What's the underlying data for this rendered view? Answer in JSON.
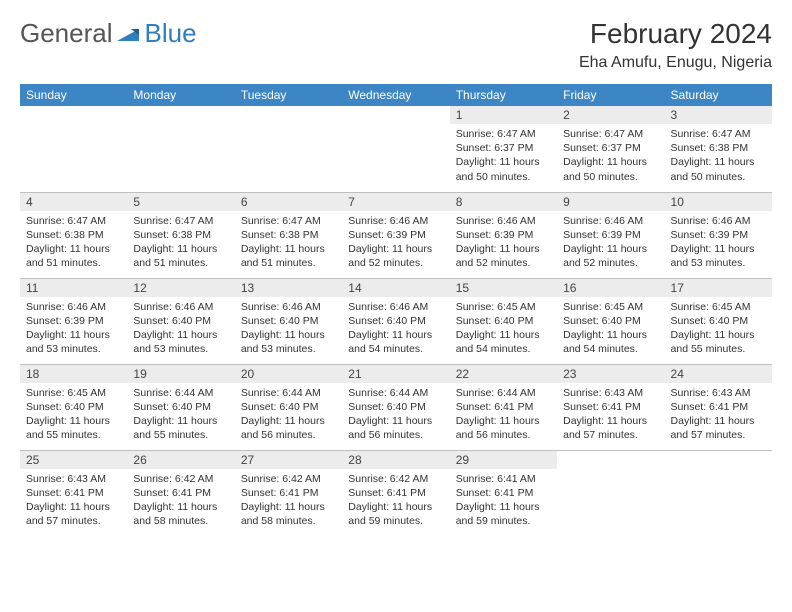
{
  "brand": {
    "part1": "General",
    "part2": "Blue"
  },
  "title": "February 2024",
  "location": "Eha Amufu, Enugu, Nigeria",
  "colors": {
    "header_bg": "#3d86c6",
    "header_text": "#ffffff",
    "daynum_bg": "#ececec",
    "body_text": "#333333",
    "brand_gray": "#555555",
    "brand_blue": "#2f7fbf",
    "border": "#bfbfbf",
    "page_bg": "#ffffff"
  },
  "typography": {
    "month_title_size": 28,
    "location_size": 16,
    "header_cell_size": 12,
    "daynum_size": 12,
    "body_size": 10.5
  },
  "labels": {
    "sunrise": "Sunrise:",
    "sunset": "Sunset:",
    "daylight": "Daylight:"
  },
  "weekdays": [
    "Sunday",
    "Monday",
    "Tuesday",
    "Wednesday",
    "Thursday",
    "Friday",
    "Saturday"
  ],
  "weeks": [
    [
      null,
      null,
      null,
      null,
      {
        "n": 1,
        "sunrise": "6:47 AM",
        "sunset": "6:37 PM",
        "daylight": "11 hours and 50 minutes."
      },
      {
        "n": 2,
        "sunrise": "6:47 AM",
        "sunset": "6:37 PM",
        "daylight": "11 hours and 50 minutes."
      },
      {
        "n": 3,
        "sunrise": "6:47 AM",
        "sunset": "6:38 PM",
        "daylight": "11 hours and 50 minutes."
      }
    ],
    [
      {
        "n": 4,
        "sunrise": "6:47 AM",
        "sunset": "6:38 PM",
        "daylight": "11 hours and 51 minutes."
      },
      {
        "n": 5,
        "sunrise": "6:47 AM",
        "sunset": "6:38 PM",
        "daylight": "11 hours and 51 minutes."
      },
      {
        "n": 6,
        "sunrise": "6:47 AM",
        "sunset": "6:38 PM",
        "daylight": "11 hours and 51 minutes."
      },
      {
        "n": 7,
        "sunrise": "6:46 AM",
        "sunset": "6:39 PM",
        "daylight": "11 hours and 52 minutes."
      },
      {
        "n": 8,
        "sunrise": "6:46 AM",
        "sunset": "6:39 PM",
        "daylight": "11 hours and 52 minutes."
      },
      {
        "n": 9,
        "sunrise": "6:46 AM",
        "sunset": "6:39 PM",
        "daylight": "11 hours and 52 minutes."
      },
      {
        "n": 10,
        "sunrise": "6:46 AM",
        "sunset": "6:39 PM",
        "daylight": "11 hours and 53 minutes."
      }
    ],
    [
      {
        "n": 11,
        "sunrise": "6:46 AM",
        "sunset": "6:39 PM",
        "daylight": "11 hours and 53 minutes."
      },
      {
        "n": 12,
        "sunrise": "6:46 AM",
        "sunset": "6:40 PM",
        "daylight": "11 hours and 53 minutes."
      },
      {
        "n": 13,
        "sunrise": "6:46 AM",
        "sunset": "6:40 PM",
        "daylight": "11 hours and 53 minutes."
      },
      {
        "n": 14,
        "sunrise": "6:46 AM",
        "sunset": "6:40 PM",
        "daylight": "11 hours and 54 minutes."
      },
      {
        "n": 15,
        "sunrise": "6:45 AM",
        "sunset": "6:40 PM",
        "daylight": "11 hours and 54 minutes."
      },
      {
        "n": 16,
        "sunrise": "6:45 AM",
        "sunset": "6:40 PM",
        "daylight": "11 hours and 54 minutes."
      },
      {
        "n": 17,
        "sunrise": "6:45 AM",
        "sunset": "6:40 PM",
        "daylight": "11 hours and 55 minutes."
      }
    ],
    [
      {
        "n": 18,
        "sunrise": "6:45 AM",
        "sunset": "6:40 PM",
        "daylight": "11 hours and 55 minutes."
      },
      {
        "n": 19,
        "sunrise": "6:44 AM",
        "sunset": "6:40 PM",
        "daylight": "11 hours and 55 minutes."
      },
      {
        "n": 20,
        "sunrise": "6:44 AM",
        "sunset": "6:40 PM",
        "daylight": "11 hours and 56 minutes."
      },
      {
        "n": 21,
        "sunrise": "6:44 AM",
        "sunset": "6:40 PM",
        "daylight": "11 hours and 56 minutes."
      },
      {
        "n": 22,
        "sunrise": "6:44 AM",
        "sunset": "6:41 PM",
        "daylight": "11 hours and 56 minutes."
      },
      {
        "n": 23,
        "sunrise": "6:43 AM",
        "sunset": "6:41 PM",
        "daylight": "11 hours and 57 minutes."
      },
      {
        "n": 24,
        "sunrise": "6:43 AM",
        "sunset": "6:41 PM",
        "daylight": "11 hours and 57 minutes."
      }
    ],
    [
      {
        "n": 25,
        "sunrise": "6:43 AM",
        "sunset": "6:41 PM",
        "daylight": "11 hours and 57 minutes."
      },
      {
        "n": 26,
        "sunrise": "6:42 AM",
        "sunset": "6:41 PM",
        "daylight": "11 hours and 58 minutes."
      },
      {
        "n": 27,
        "sunrise": "6:42 AM",
        "sunset": "6:41 PM",
        "daylight": "11 hours and 58 minutes."
      },
      {
        "n": 28,
        "sunrise": "6:42 AM",
        "sunset": "6:41 PM",
        "daylight": "11 hours and 59 minutes."
      },
      {
        "n": 29,
        "sunrise": "6:41 AM",
        "sunset": "6:41 PM",
        "daylight": "11 hours and 59 minutes."
      },
      null,
      null
    ]
  ]
}
